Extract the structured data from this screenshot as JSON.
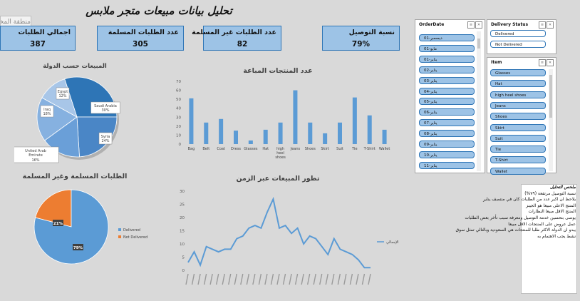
{
  "title": "تحليل بيانات مبيعات  متجر ملابس",
  "region_label": "منطقة المخطط",
  "kpis": [
    {
      "label": "اجمالي الطلبات",
      "value": "387"
    },
    {
      "label": "عدد الطلبات المسلمة",
      "value": "305"
    },
    {
      "label": "عدد الطلبات غير المسلمة",
      "value": "82"
    },
    {
      "label": "نسبة التوصيل",
      "value": "79%"
    }
  ],
  "slicers": {
    "order_date": {
      "header": "OrderDate",
      "items": [
        "ديسمبر-01",
        "مايو-01",
        "يناير-01",
        "يناير-02",
        "يناير-03",
        "يناير-04",
        "يناير-05",
        "يناير-06",
        "يناير-07",
        "يناير-08",
        "يناير-09",
        "يناير-10",
        "يناير-11"
      ]
    },
    "delivery_status": {
      "header": "Delivery Status",
      "items": [
        "Delivered",
        "Not Delivered"
      ]
    },
    "item": {
      "header": "Item",
      "items": [
        "Glasses",
        "Hat",
        "high heel shoes",
        "Jeans",
        "Shoes",
        "Skirt",
        "Suit",
        "Tie",
        "T-Shirt",
        "Wallet"
      ]
    }
  },
  "colors": {
    "bar": "#5b9bd5",
    "delivered": "#5b9bd5",
    "not_delivered": "#ed7d31",
    "line": "#5b9bd5"
  },
  "summary": {
    "heading": "ملخص التحليل",
    "lines": [
      "نسبة التوصيل مرتفعة (٧٩%)",
      "يلاحظ ان اكبر عدد من الطلبات كان في منتصف يناير",
      "المنتج الاعلى مبيعا هو الجينز",
      "المنتج الاقل مبيعا النظارات",
      "يوصى بتحسين خدمة التوصيل ومعرفة سبب تأخر بعض الطلبات",
      "عمل عروض على المنتجات الاقل مبيعا",
      "يبدو ان الدولة الاكثر طلبا للمنتجات هي السعودية وبالتالي تمثل سوق",
      "نشط يجب الاهتمام به"
    ]
  },
  "chart_data": [
    {
      "type": "pie",
      "title": "المبيعات حسب الدولة",
      "categories": [
        "Saudi Arabia",
        "Syria",
        "United Arab Emirate",
        "Iraq",
        "Egypt"
      ],
      "values": [
        30,
        24,
        16,
        18,
        12
      ],
      "data_labels": [
        "Saudi Arabia 30%",
        "Syria 24%",
        "United Arab Emirate 16%",
        "Iraq 18%",
        "Egypt 12%"
      ]
    },
    {
      "type": "bar",
      "title": "عدد المنتجات المباعة",
      "categories": [
        "Bag",
        "Belt",
        "Coat",
        "Dress",
        "Glasses",
        "Hat",
        "high heel shoes",
        "Jeans",
        "Shoes",
        "Skirt",
        "Suit",
        "Tie",
        "T-Shirt",
        "Wallet"
      ],
      "values": [
        51,
        24,
        28,
        15,
        4,
        16,
        24,
        60,
        24,
        12,
        24,
        52,
        32,
        16
      ],
      "ylim": [
        0,
        70
      ],
      "yticks": [
        0,
        10,
        20,
        30,
        40,
        50,
        60,
        70
      ]
    },
    {
      "type": "pie",
      "title": "الطلبات المسلمة وغير المسلمة",
      "categories": [
        "Delivered",
        "Not Delivered"
      ],
      "values": [
        79,
        21
      ],
      "data_labels": [
        "79%",
        "21%"
      ],
      "legend": "right"
    },
    {
      "type": "line",
      "title": "تطور المبيعات عبر الزمن",
      "series": [
        {
          "name": "الإجمالي",
          "values": [
            3,
            7,
            2,
            9,
            8,
            7,
            8,
            8,
            12,
            13,
            16,
            17,
            16,
            22,
            27,
            16,
            17,
            14,
            16,
            10,
            13,
            12,
            9,
            6,
            12,
            8,
            7,
            6,
            4,
            1,
            1
          ]
        }
      ],
      "ylim": [
        0,
        30
      ],
      "yticks": [
        0,
        5,
        10,
        15,
        20,
        25,
        30
      ],
      "legend": "right"
    }
  ]
}
